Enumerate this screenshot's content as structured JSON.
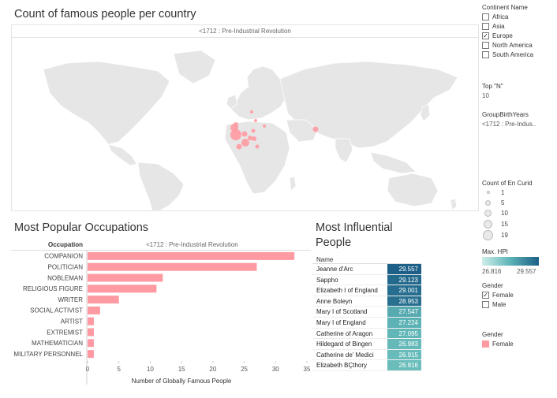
{
  "map": {
    "title": "Count of famous people per country",
    "subtitle": "<1712 : Pre-Industrial Revolution",
    "land_color": "#e6e6e6",
    "mark_color": "#ff9aa2"
  },
  "filters": {
    "continent": {
      "label": "Continent Name",
      "options": [
        {
          "label": "Africa",
          "checked": false
        },
        {
          "label": "Asia",
          "checked": false
        },
        {
          "label": "Europe",
          "checked": true
        },
        {
          "label": "North America",
          "checked": false
        },
        {
          "label": "South America",
          "checked": false
        }
      ]
    },
    "top_n": {
      "label": "Top \"N\"",
      "value": "10"
    },
    "birth_years": {
      "label": "GroupBirthYears",
      "value": "<1712 : Pre-Indus.."
    },
    "size_legend": {
      "label": "Count of En Curid",
      "values": [
        "1",
        "5",
        "10",
        "15",
        "19"
      ]
    },
    "hpi_legend": {
      "label": "Max. HPI",
      "min": "26.816",
      "max": "29.557"
    },
    "gender": {
      "label": "Gender",
      "options": [
        {
          "label": "Female",
          "checked": true
        },
        {
          "label": "Male",
          "checked": false
        }
      ]
    },
    "gender_legend": {
      "label": "Gender",
      "item": "Female",
      "color": "#ff9aa2"
    }
  },
  "occupations": {
    "title": "Most Popular Occupations",
    "column_header": "Occupation",
    "subtitle": "<1712 : Pre-Industrial Revolution"
  },
  "chart_data": {
    "type": "bar",
    "orientation": "horizontal",
    "title": "Most Popular Occupations",
    "categories": [
      "COMPANION",
      "POLITICIAN",
      "NOBLEMAN",
      "RELIGIOUS FIGURE",
      "WRITER",
      "SOCIAL ACTIVIST",
      "ARTIST",
      "EXTREMIST",
      "MATHEMATICIAN",
      "MILITARY PERSONNEL"
    ],
    "values": [
      33,
      27,
      12,
      11,
      5,
      2,
      1,
      1,
      1,
      1
    ],
    "xlabel": "Number of Globally Famous People",
    "ylabel": "Occupation",
    "xlim": [
      0,
      35
    ],
    "xticks": [
      0,
      5,
      10,
      15,
      20,
      25,
      30,
      35
    ],
    "color": "#ff9aa2",
    "grid": false
  },
  "influential": {
    "title": "Most Influential People",
    "column_header": "Name",
    "rows": [
      {
        "name": "Jeanne d'Arc",
        "value": "29.557",
        "color": "#1d5f87"
      },
      {
        "name": "Sappho",
        "value": "29.123",
        "color": "#246a8d"
      },
      {
        "name": "Elizabeth I of England",
        "value": "29.001",
        "color": "#266d8f"
      },
      {
        "name": "Anne Boleyn",
        "value": "28.953",
        "color": "#286f90"
      },
      {
        "name": "Mary I of Scotland",
        "value": "27.547",
        "color": "#57aab0"
      },
      {
        "name": "Mary I of England",
        "value": "27.224",
        "color": "#5cb2b5"
      },
      {
        "name": "Catherine of Aragon",
        "value": "27.095",
        "color": "#61b6b7"
      },
      {
        "name": "Hildegard of Bingen",
        "value": "26.983",
        "color": "#65b9b9"
      },
      {
        "name": "Catherine de' Medici",
        "value": "26.915",
        "color": "#67bbba"
      },
      {
        "name": "Elizabeth BÇthory",
        "value": "26.816",
        "color": "#6abdbb"
      }
    ]
  }
}
